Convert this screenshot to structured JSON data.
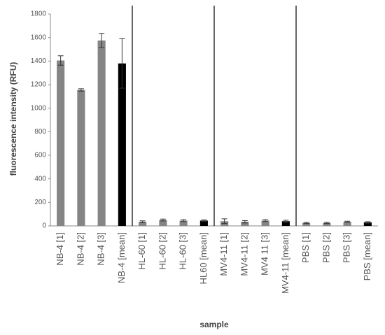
{
  "chart_data": {
    "type": "bar",
    "x_label": "sample",
    "y_label": "fluorescence intensity (RFU)",
    "categories": [
      "NB-4 [1]",
      "NB-4 [2]",
      "NB-4 [3]",
      "NB-4 [mean]",
      "HL-60 [1]",
      "HL-60 [2]",
      "HL-60 [3]",
      "HL60 [mean]",
      "MV4-11 [1]",
      "MV4-11 [2]",
      "MV4 11 [3]",
      "MV4-11 [mean]",
      "PBS [1]",
      "PBS [2]",
      "PBS [3]",
      "PBS [mean]"
    ],
    "values": [
      1405,
      1155,
      1575,
      1380,
      35,
      50,
      45,
      45,
      40,
      35,
      45,
      40,
      25,
      25,
      35,
      30
    ],
    "errors": [
      40,
      10,
      60,
      210,
      8,
      8,
      8,
      6,
      20,
      10,
      8,
      8,
      5,
      5,
      5,
      6
    ],
    "colors": [
      "#858585",
      "#858585",
      "#858585",
      "#000000",
      "#858585",
      "#858585",
      "#858585",
      "#000000",
      "#858585",
      "#858585",
      "#858585",
      "#000000",
      "#858585",
      "#858585",
      "#858585",
      "#000000"
    ],
    "ylim": [
      0,
      1800
    ],
    "yticks": [
      0,
      200,
      400,
      600,
      800,
      1000,
      1200,
      1400,
      1600,
      1800
    ],
    "grid": false
  }
}
